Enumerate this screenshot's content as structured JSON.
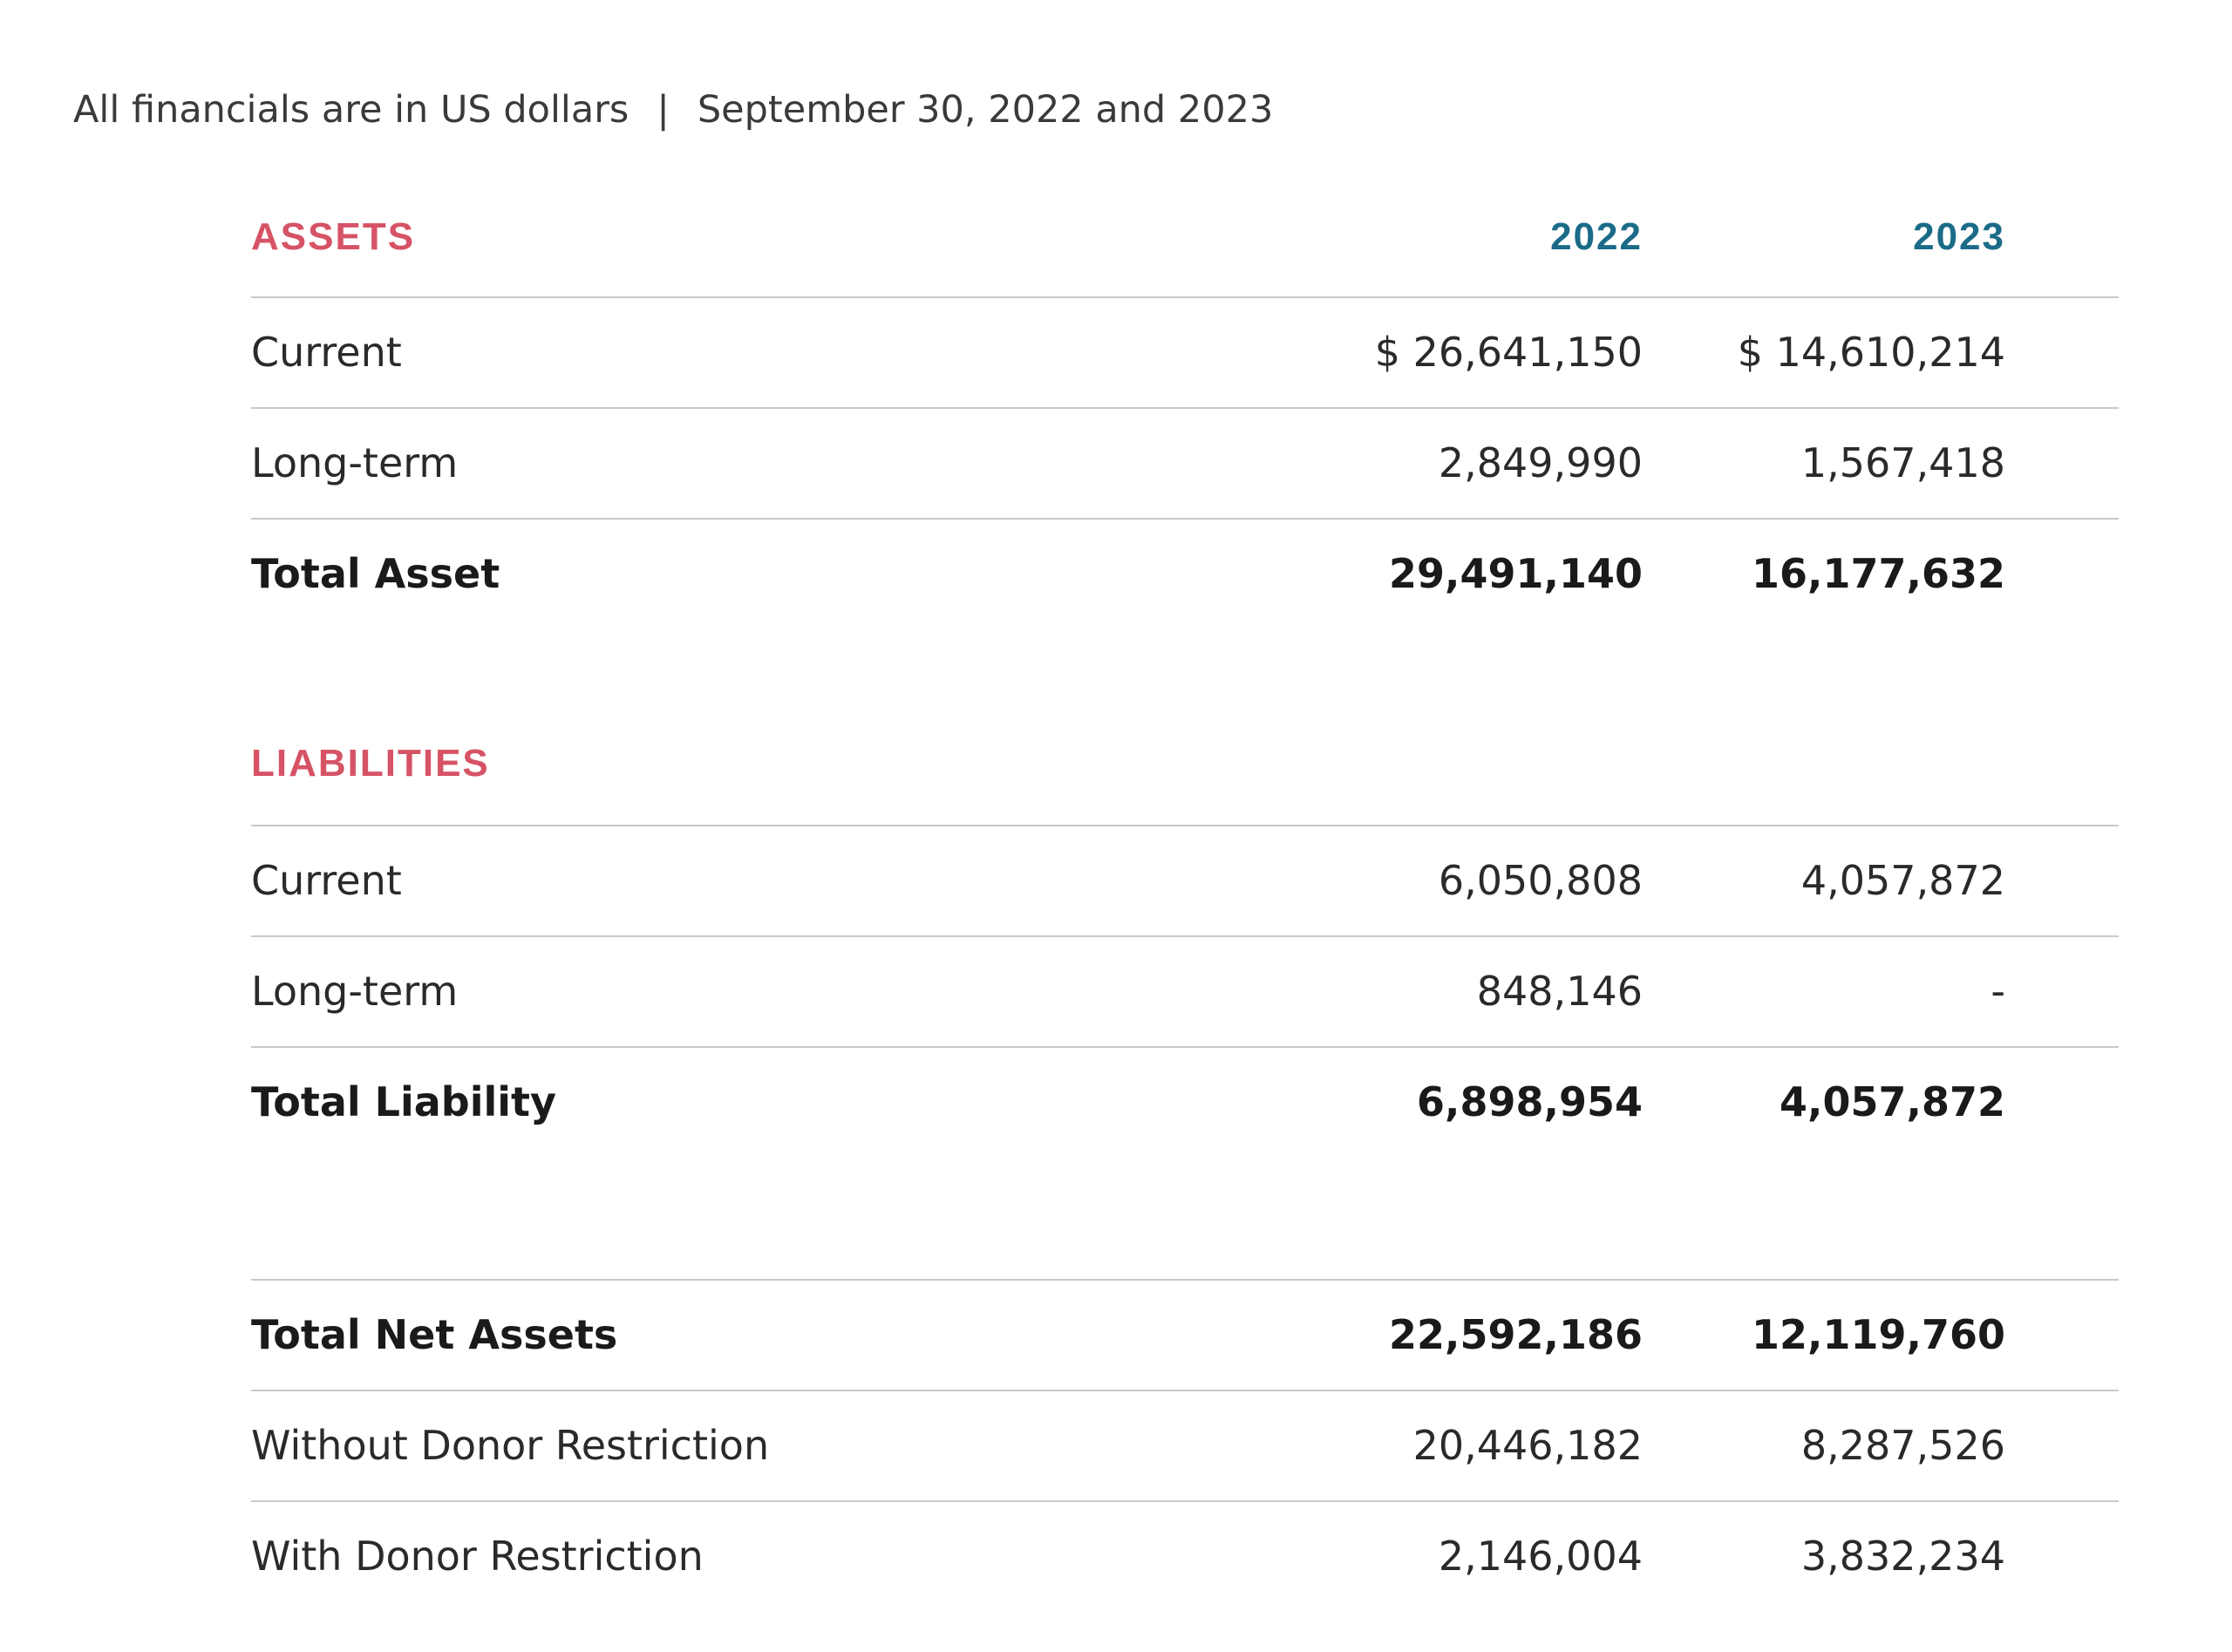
{
  "subtitle": {
    "currency_note": "All financials are in US dollars",
    "separator": "|",
    "dates": "September 30, 2022 and 2023"
  },
  "columns": {
    "year_1": "2022",
    "year_2": "2023"
  },
  "assets": {
    "heading": "ASSETS",
    "rows": [
      {
        "label": "Current",
        "v2022": "$ 26,641,150",
        "v2023": "$ 14,610,214"
      },
      {
        "label": "Long-term",
        "v2022": "2,849,990",
        "v2023": "1,567,418"
      }
    ],
    "total": {
      "label": "Total Asset",
      "v2022": "29,491,140",
      "v2023": "16,177,632"
    }
  },
  "liabilities": {
    "heading": "LIABILITIES",
    "rows": [
      {
        "label": "Current",
        "v2022": "6,050,808",
        "v2023": "4,057,872"
      },
      {
        "label": "Long-term",
        "v2022": "848,146",
        "v2023": "-"
      }
    ],
    "total": {
      "label": "Total Liability",
      "v2022": "6,898,954",
      "v2023": "4,057,872"
    }
  },
  "net_assets": {
    "total": {
      "label": "Total Net Assets",
      "v2022": "22,592,186",
      "v2023": "12,119,760"
    },
    "rows": [
      {
        "label": "Without Donor Restriction",
        "v2022": "20,446,182",
        "v2023": "8,287,526"
      },
      {
        "label": "With Donor Restriction",
        "v2022": "2,146,004",
        "v2023": "3,832,234"
      }
    ]
  }
}
